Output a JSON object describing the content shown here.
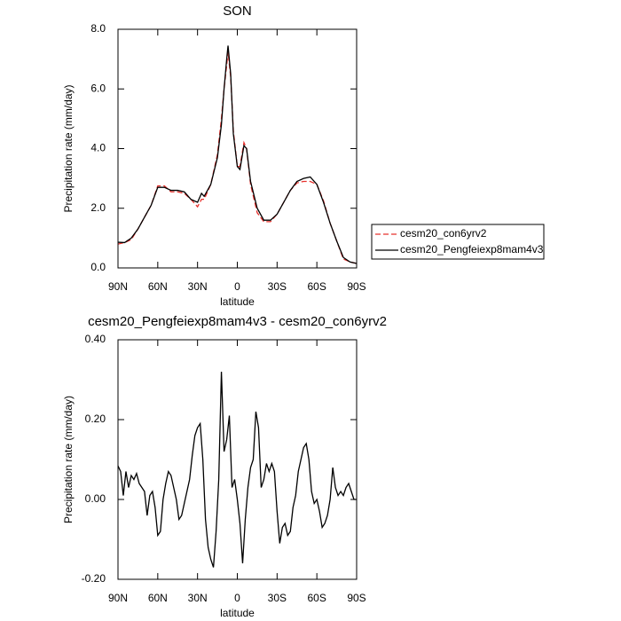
{
  "chart_data": [
    {
      "type": "line",
      "title": "SON",
      "ylabel": "Precipitation rate (mm/day)",
      "xlabel": "latitude",
      "x": [
        90,
        85,
        80,
        75,
        70,
        65,
        60,
        55,
        50,
        45,
        40,
        35,
        30,
        27,
        25,
        20,
        15,
        12,
        10,
        8,
        7,
        5,
        3,
        0,
        -2,
        -5,
        -7,
        -10,
        -15,
        -20,
        -25,
        -30,
        -35,
        -40,
        -45,
        -50,
        -55,
        -60,
        -65,
        -70,
        -75,
        -80,
        -85,
        -90
      ],
      "series": [
        {
          "name": "cesm20_con6yrv2",
          "color": "#e8302c",
          "style": "dashed",
          "values": [
            0.8,
            0.85,
            0.95,
            1.3,
            1.7,
            2.1,
            2.75,
            2.75,
            2.55,
            2.55,
            2.5,
            2.3,
            2.05,
            2.3,
            2.3,
            2.8,
            3.8,
            5.0,
            6.0,
            6.8,
            7.25,
            6.4,
            4.6,
            3.4,
            3.4,
            4.2,
            4.0,
            2.8,
            1.85,
            1.55,
            1.55,
            1.8,
            2.2,
            2.6,
            2.85,
            2.9,
            2.9,
            2.8,
            2.25,
            1.5,
            0.9,
            0.3,
            0.2,
            0.15
          ]
        },
        {
          "name": "cesm20_Pengfeiexp8mam4v3",
          "color": "#000000",
          "style": "solid",
          "values": [
            0.86,
            0.85,
            1.0,
            1.3,
            1.7,
            2.1,
            2.7,
            2.7,
            2.6,
            2.6,
            2.55,
            2.3,
            2.2,
            2.5,
            2.4,
            2.8,
            3.7,
            4.8,
            6.0,
            7.0,
            7.45,
            6.5,
            4.5,
            3.4,
            3.3,
            4.1,
            4.0,
            2.9,
            2.0,
            1.6,
            1.6,
            1.8,
            2.2,
            2.6,
            2.9,
            3.0,
            3.05,
            2.8,
            2.2,
            1.5,
            0.9,
            0.35,
            0.2,
            0.15
          ]
        }
      ],
      "xlim": [
        90,
        -90
      ],
      "xticks": [
        {
          "value": 90,
          "label": "90N"
        },
        {
          "value": 60,
          "label": "60N"
        },
        {
          "value": 30,
          "label": "30N"
        },
        0,
        {
          "value": -30,
          "label": "30S"
        },
        {
          "value": -60,
          "label": "60S"
        },
        {
          "value": -90,
          "label": "90S"
        }
      ],
      "ylim": [
        0,
        8
      ],
      "yticks": [
        {
          "value": 0,
          "label": "0.0"
        },
        {
          "value": 2,
          "label": "2.0"
        },
        {
          "value": 4,
          "label": "4.0"
        },
        {
          "value": 6,
          "label": "6.0"
        },
        {
          "value": 8,
          "label": "8.0"
        }
      ],
      "legend": "outside-right"
    },
    {
      "type": "line",
      "title": "cesm20_Pengfeiexp8mam4v3 - cesm20_con6yrv2",
      "ylabel": "Precipitation rate (mm/day)",
      "xlabel": "latitude",
      "x": [
        90,
        88,
        86,
        84,
        82,
        80,
        78,
        76,
        74,
        72,
        70,
        68,
        66,
        64,
        62,
        60,
        58,
        56,
        54,
        52,
        50,
        48,
        46,
        44,
        42,
        40,
        38,
        36,
        34,
        32,
        30,
        28,
        26,
        24,
        22,
        20,
        18,
        16,
        14,
        12,
        10,
        8,
        6,
        4,
        2,
        0,
        -2,
        -4,
        -6,
        -8,
        -10,
        -12,
        -14,
        -16,
        -18,
        -20,
        -22,
        -24,
        -26,
        -28,
        -30,
        -32,
        -34,
        -36,
        -38,
        -40,
        -42,
        -44,
        -46,
        -48,
        -50,
        -52,
        -54,
        -56,
        -58,
        -60,
        -62,
        -64,
        -66,
        -68,
        -70,
        -72,
        -74,
        -76,
        -78,
        -80,
        -82,
        -84,
        -86,
        -88,
        -90
      ],
      "series": [
        {
          "color": "#000000",
          "style": "solid",
          "values": [
            0.084,
            0.07,
            0.01,
            0.07,
            0.03,
            0.06,
            0.05,
            0.065,
            0.04,
            0.03,
            0.02,
            -0.04,
            0.01,
            0.02,
            -0.02,
            -0.09,
            -0.08,
            0.0,
            0.04,
            0.07,
            0.06,
            0.03,
            0.0,
            -0.05,
            -0.04,
            -0.01,
            0.02,
            0.05,
            0.11,
            0.16,
            0.18,
            0.19,
            0.1,
            -0.05,
            -0.12,
            -0.15,
            -0.17,
            -0.08,
            0.05,
            0.32,
            0.12,
            0.15,
            0.21,
            0.03,
            0.05,
            0.0,
            -0.06,
            -0.16,
            -0.05,
            0.03,
            0.08,
            0.1,
            0.22,
            0.18,
            0.03,
            0.05,
            0.09,
            0.07,
            0.09,
            0.07,
            -0.03,
            -0.11,
            -0.07,
            -0.06,
            -0.09,
            -0.08,
            -0.02,
            0.01,
            0.07,
            0.1,
            0.13,
            0.14,
            0.1,
            0.02,
            -0.01,
            0.0,
            -0.03,
            -0.07,
            -0.06,
            -0.04,
            0.0,
            0.08,
            0.03,
            0.01,
            0.02,
            0.01,
            0.03,
            0.04,
            0.02,
            0.0,
            0.0
          ]
        }
      ],
      "xlim": [
        90,
        -90
      ],
      "xticks": [
        {
          "value": 90,
          "label": "90N"
        },
        {
          "value": 60,
          "label": "60N"
        },
        {
          "value": 30,
          "label": "30N"
        },
        0,
        {
          "value": -30,
          "label": "30S"
        },
        {
          "value": -60,
          "label": "60S"
        },
        {
          "value": -90,
          "label": "90S"
        }
      ],
      "ylim": [
        -0.2,
        0.4
      ],
      "yticks": [
        {
          "value": -0.2,
          "label": "-0.20"
        },
        {
          "value": 0,
          "label": "0.00"
        },
        {
          "value": 0.2,
          "label": "0.20"
        },
        {
          "value": 0.4,
          "label": "0.40"
        }
      ]
    }
  ]
}
